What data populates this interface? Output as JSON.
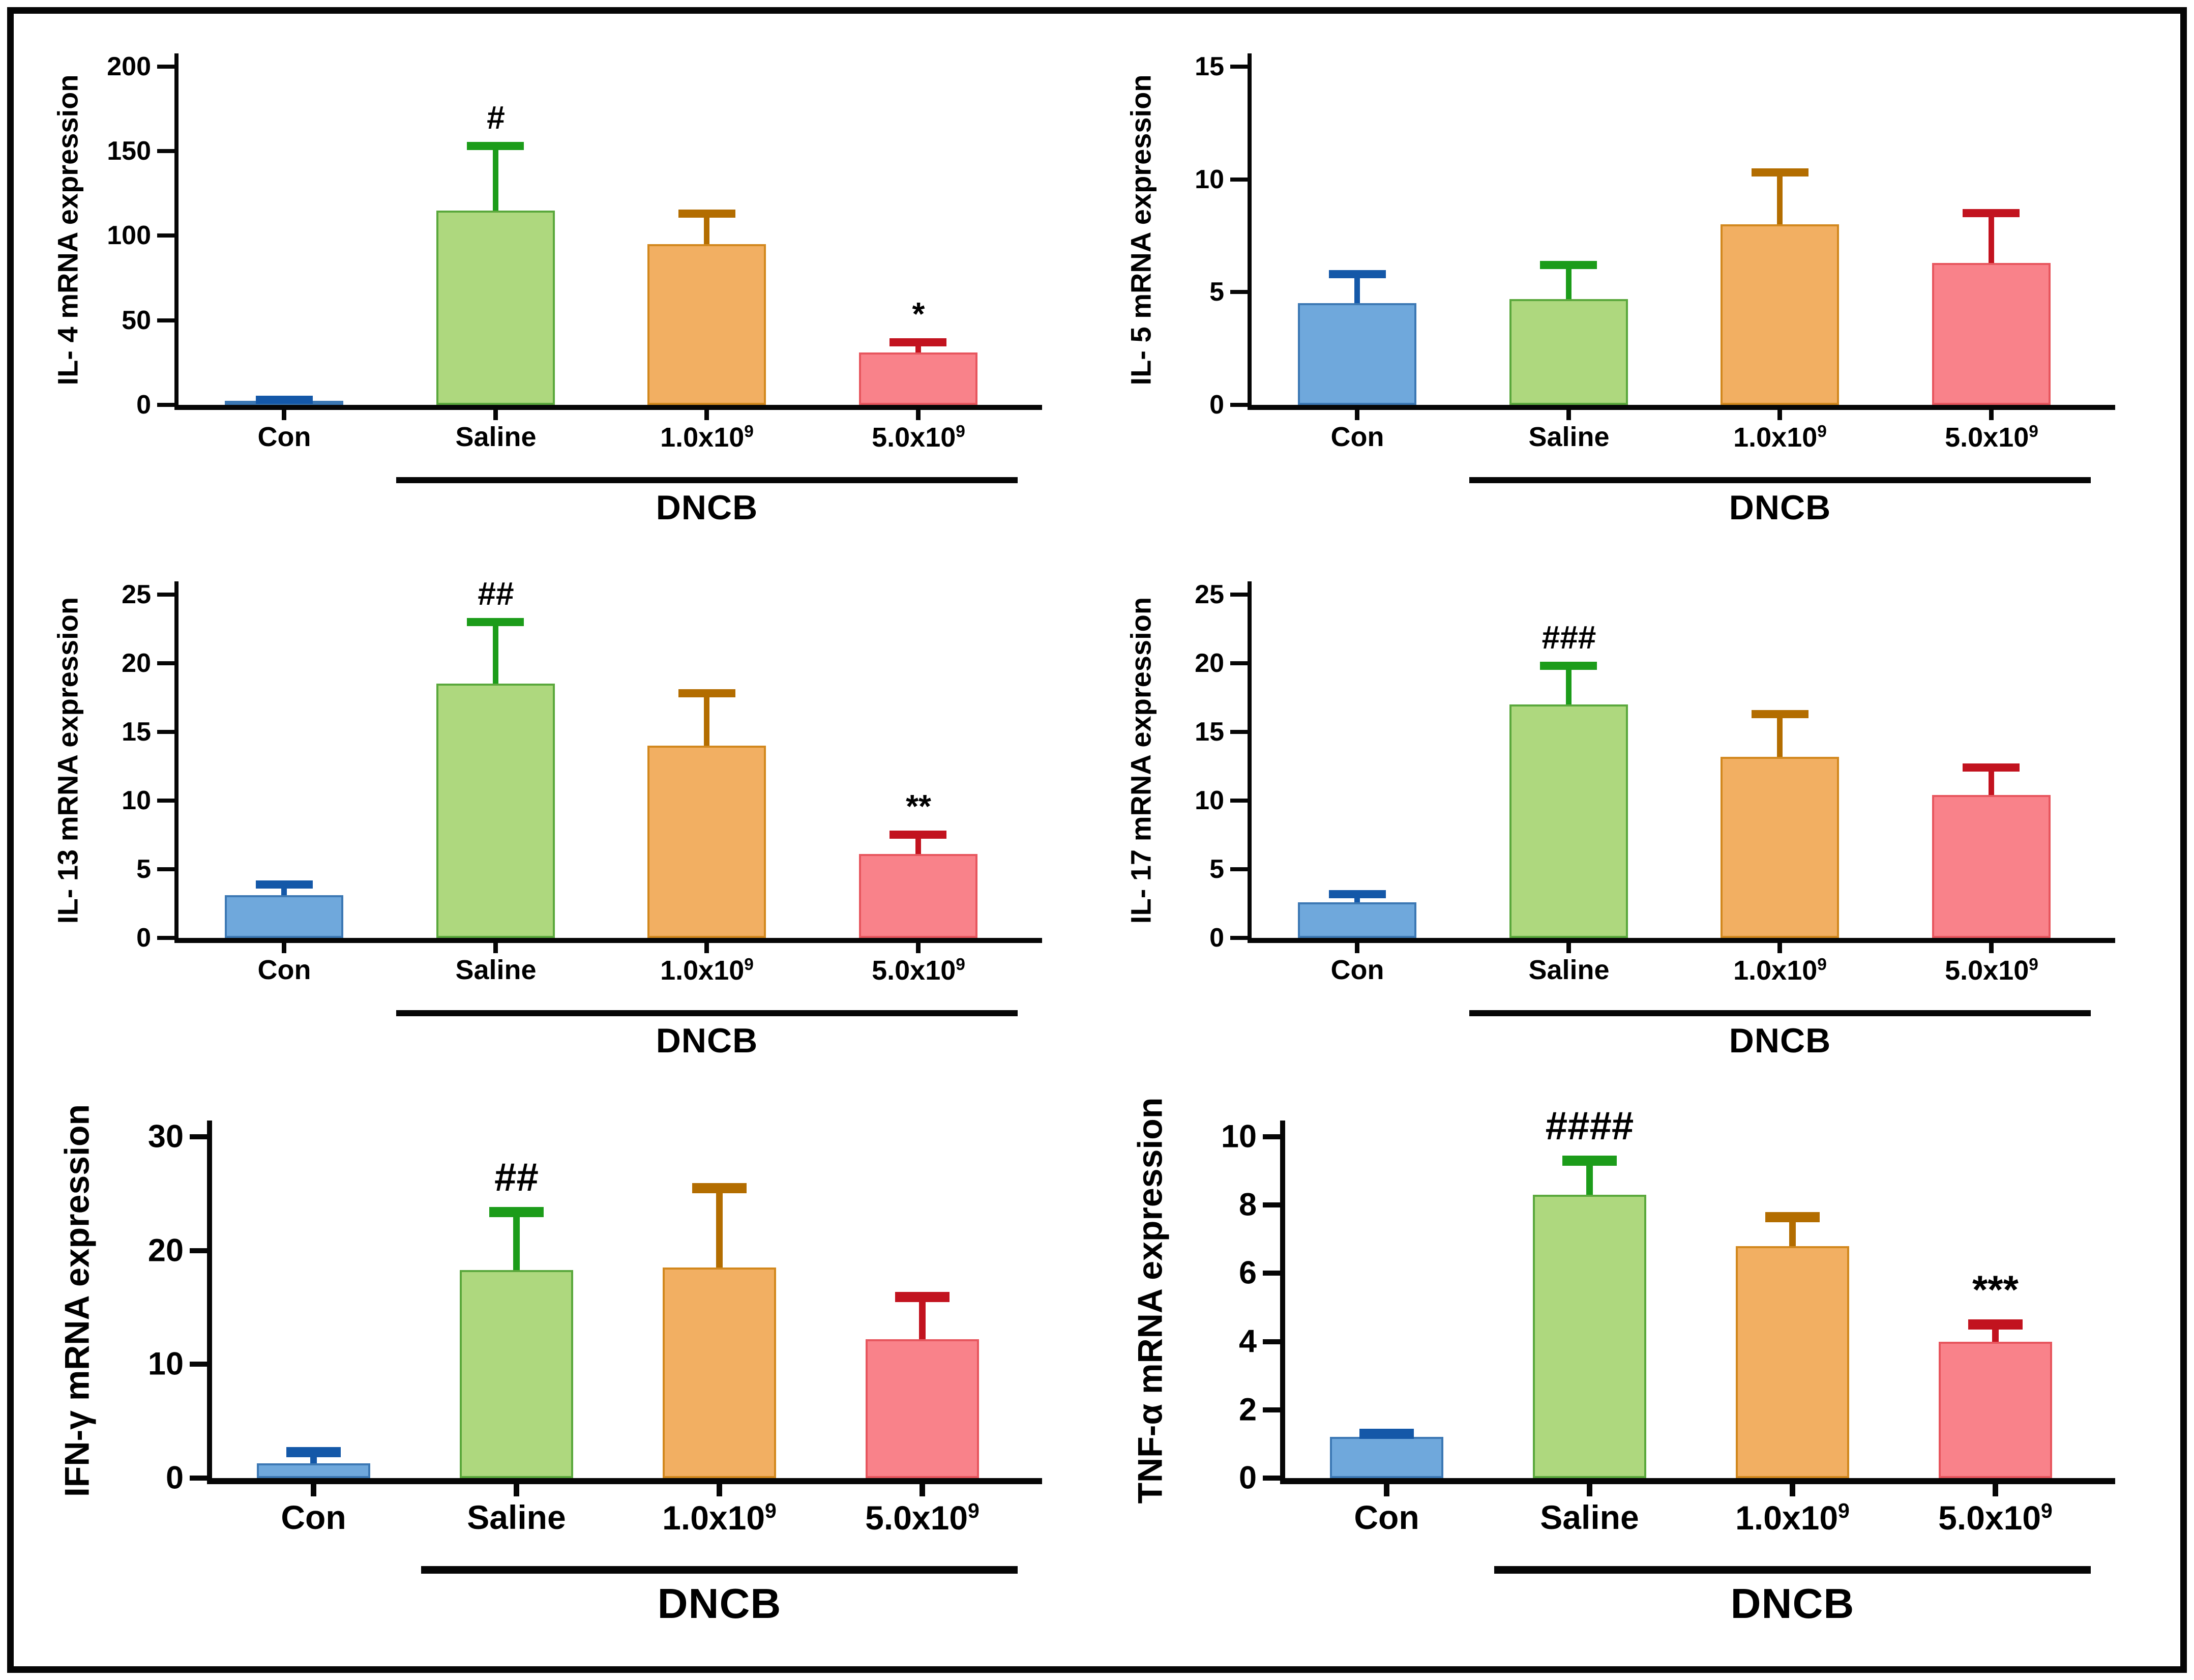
{
  "figure": {
    "background": "#ffffff",
    "frame_color": "#060606",
    "text_color": "#000000"
  },
  "palette": [
    {
      "name": "Con",
      "fill": "#6fa8dc",
      "border": "#3c78b4",
      "error": "#1458a8"
    },
    {
      "name": "Saline",
      "fill": "#aed87e",
      "border": "#5aa83c",
      "error": "#1c9c1a"
    },
    {
      "name": "1.0x10^9",
      "fill": "#f2af62",
      "border": "#d2881e",
      "error": "#b36d00"
    },
    {
      "name": "5.0x10^9",
      "fill": "#f9828a",
      "border": "#e7565e",
      "error": "#c2131f"
    }
  ],
  "chart_data": [
    {
      "type": "bar",
      "ylabel": "IL- 4 mRNA expression",
      "xlabel": "",
      "ylim": [
        0,
        200
      ],
      "yticks": [
        0,
        50,
        100,
        150,
        200
      ],
      "categories": [
        {
          "label": "Con",
          "sup": ""
        },
        {
          "label": "Saline",
          "sup": ""
        },
        {
          "label": "1.0x10",
          "sup": "9"
        },
        {
          "label": "5.0x10",
          "sup": "9"
        }
      ],
      "values": [
        2,
        115,
        95,
        31
      ],
      "error_tops": [
        3,
        153,
        113,
        37
      ],
      "annotations": [
        "",
        "#",
        "",
        "*"
      ],
      "group_label": "DNCB",
      "group_span": [
        1,
        3
      ]
    },
    {
      "type": "bar",
      "ylabel": "IL- 5 mRNA expression",
      "xlabel": "",
      "ylim": [
        0,
        15
      ],
      "yticks": [
        0,
        5,
        10,
        15
      ],
      "categories": [
        {
          "label": "Con",
          "sup": ""
        },
        {
          "label": "Saline",
          "sup": ""
        },
        {
          "label": "1.0x10",
          "sup": "9"
        },
        {
          "label": "5.0x10",
          "sup": "9"
        }
      ],
      "values": [
        4.5,
        4.7,
        8.0,
        6.3
      ],
      "error_tops": [
        5.8,
        6.2,
        10.3,
        8.5
      ],
      "annotations": [
        "",
        "",
        "",
        ""
      ],
      "group_label": "DNCB",
      "group_span": [
        1,
        3
      ]
    },
    {
      "type": "bar",
      "ylabel": "IL- 13 mRNA expression",
      "xlabel": "",
      "ylim": [
        0,
        25
      ],
      "yticks": [
        0,
        5,
        10,
        15,
        20,
        25
      ],
      "categories": [
        {
          "label": "Con",
          "sup": ""
        },
        {
          "label": "Saline",
          "sup": ""
        },
        {
          "label": "1.0x10",
          "sup": "9"
        },
        {
          "label": "5.0x10",
          "sup": "9"
        }
      ],
      "values": [
        3.1,
        18.5,
        14.0,
        6.1
      ],
      "error_tops": [
        3.9,
        23.0,
        17.8,
        7.5
      ],
      "annotations": [
        "",
        "##",
        "",
        "**"
      ],
      "group_label": "DNCB",
      "group_span": [
        1,
        3
      ]
    },
    {
      "type": "bar",
      "ylabel": "IL- 17 mRNA expression",
      "xlabel": "",
      "ylim": [
        0,
        25
      ],
      "yticks": [
        0,
        5,
        10,
        15,
        20,
        25
      ],
      "categories": [
        {
          "label": "Con",
          "sup": ""
        },
        {
          "label": "Saline",
          "sup": ""
        },
        {
          "label": "1.0x10",
          "sup": "9"
        },
        {
          "label": "5.0x10",
          "sup": "9"
        }
      ],
      "values": [
        2.6,
        17.0,
        13.2,
        10.4
      ],
      "error_tops": [
        3.2,
        19.8,
        16.3,
        12.4
      ],
      "annotations": [
        "",
        "###",
        "",
        ""
      ],
      "group_label": "DNCB",
      "group_span": [
        1,
        3
      ]
    },
    {
      "type": "bar",
      "ylabel": "IFN-γ mRNA expression",
      "xlabel": "",
      "ylim": [
        0,
        30
      ],
      "yticks": [
        0,
        10,
        20,
        30
      ],
      "categories": [
        {
          "label": "Con",
          "sup": ""
        },
        {
          "label": "Saline",
          "sup": ""
        },
        {
          "label": "1.0x10",
          "sup": "9"
        },
        {
          "label": "5.0x10",
          "sup": "9"
        }
      ],
      "values": [
        1.3,
        18.3,
        18.5,
        12.2
      ],
      "error_tops": [
        2.3,
        23.4,
        25.5,
        15.9
      ],
      "annotations": [
        "",
        "##",
        "",
        ""
      ],
      "group_label": "DNCB",
      "group_span": [
        1,
        3
      ]
    },
    {
      "type": "bar",
      "ylabel": "TNF-α mRNA expression",
      "xlabel": "",
      "ylim": [
        0,
        10
      ],
      "yticks": [
        0,
        2,
        4,
        6,
        8,
        10
      ],
      "categories": [
        {
          "label": "Con",
          "sup": ""
        },
        {
          "label": "Saline",
          "sup": ""
        },
        {
          "label": "1.0x10",
          "sup": "9"
        },
        {
          "label": "5.0x10",
          "sup": "9"
        }
      ],
      "values": [
        1.2,
        8.3,
        6.8,
        4.0
      ],
      "error_tops": [
        1.3,
        9.3,
        7.65,
        4.5
      ],
      "annotations": [
        "",
        "####",
        "",
        "***"
      ],
      "group_label": "DNCB",
      "group_span": [
        1,
        3
      ]
    }
  ]
}
